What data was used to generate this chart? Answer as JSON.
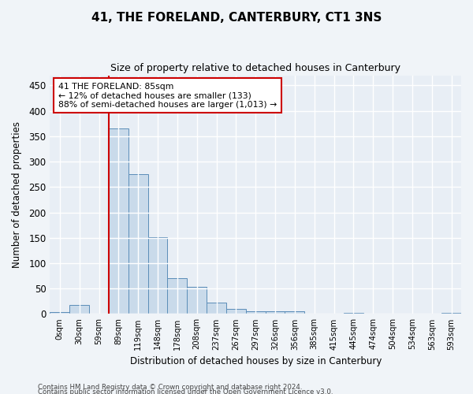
{
  "title": "41, THE FORELAND, CANTERBURY, CT1 3NS",
  "subtitle": "Size of property relative to detached houses in Canterbury",
  "xlabel": "Distribution of detached houses by size in Canterbury",
  "ylabel": "Number of detached properties",
  "bar_color": "#c9daea",
  "bar_edge_color": "#5b8db8",
  "background_color": "#e8eef5",
  "grid_color": "#ffffff",
  "annotation_box_color": "#cc0000",
  "vline_color": "#cc0000",
  "annotation_text": "41 THE FORELAND: 85sqm\n← 12% of detached houses are smaller (133)\n88% of semi-detached houses are larger (1,013) →",
  "categories": [
    "0sqm",
    "30sqm",
    "59sqm",
    "89sqm",
    "119sqm",
    "148sqm",
    "178sqm",
    "208sqm",
    "237sqm",
    "267sqm",
    "297sqm",
    "326sqm",
    "356sqm",
    "385sqm",
    "415sqm",
    "445sqm",
    "474sqm",
    "504sqm",
    "534sqm",
    "563sqm",
    "593sqm"
  ],
  "bar_heights": [
    4,
    18,
    0,
    365,
    275,
    151,
    71,
    54,
    23,
    10,
    5,
    6,
    6,
    0,
    0,
    2,
    0,
    0,
    0,
    0,
    2
  ],
  "ylim": [
    0,
    470
  ],
  "yticks": [
    0,
    50,
    100,
    150,
    200,
    250,
    300,
    350,
    400,
    450
  ],
  "footer_line1": "Contains HM Land Registry data © Crown copyright and database right 2024.",
  "footer_line2": "Contains public sector information licensed under the Open Government Licence v3.0."
}
